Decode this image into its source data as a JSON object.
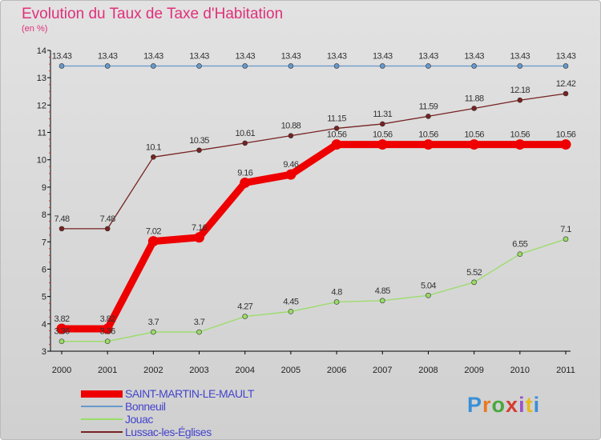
{
  "header": {
    "title": "Evolution du Taux de Taxe d'Habitation",
    "unit": "(en %)"
  },
  "logo": {
    "text": "Proxiti"
  },
  "colors": {
    "SAINT-MARTIN-LE-MAULT": "#ee0000",
    "Bonneuil": "#6699cc",
    "Jouac": "#99dd66",
    "Lussac-les-Églises": "#772222",
    "title": "#e0307a",
    "legend_text": "#4444cc"
  },
  "chart_data": {
    "type": "line",
    "x": [
      "2000",
      "2001",
      "2002",
      "2003",
      "2004",
      "2005",
      "2006",
      "2007",
      "2008",
      "2009",
      "2010",
      "2011"
    ],
    "y_ticks": [
      "3",
      "4",
      "5",
      "6",
      "7",
      "8",
      "9",
      "10",
      "11",
      "12",
      "13",
      "14"
    ],
    "ylim": [
      3,
      14
    ],
    "grid": false,
    "legend_position": "bottom-left",
    "series": [
      {
        "name": "SAINT-MARTIN-LE-MAULT",
        "values": [
          3.82,
          3.82,
          7.02,
          7.16,
          9.16,
          9.46,
          10.56,
          10.56,
          10.56,
          10.56,
          10.56,
          10.56
        ],
        "labels": [
          "3.82",
          "3.82",
          "7.02",
          "7.16",
          "9.16",
          "9.46",
          "10.56",
          "10.56",
          "10.56",
          "10.56",
          "10.56",
          "10.56"
        ]
      },
      {
        "name": "Bonneuil",
        "values": [
          13.43,
          13.43,
          13.43,
          13.43,
          13.43,
          13.43,
          13.43,
          13.43,
          13.43,
          13.43,
          13.43,
          13.43
        ],
        "labels": [
          "13.43",
          "13.43",
          "13.43",
          "13.43",
          "13.43",
          "13.43",
          "13.43",
          "13.43",
          "13.43",
          "13.43",
          "13.43",
          "13.43"
        ]
      },
      {
        "name": "Jouac",
        "values": [
          3.36,
          3.36,
          3.7,
          3.7,
          4.27,
          4.45,
          4.8,
          4.85,
          5.04,
          5.52,
          6.55,
          7.1
        ],
        "labels": [
          "3.36",
          "3.36",
          "3.7",
          "3.7",
          "4.27",
          "4.45",
          "4.8",
          "4.85",
          "5.04",
          "5.52",
          "6.55",
          "7.1"
        ]
      },
      {
        "name": "Lussac-les-Églises",
        "values": [
          7.48,
          7.48,
          10.1,
          10.35,
          10.61,
          10.88,
          11.15,
          11.31,
          11.59,
          11.88,
          12.18,
          12.42
        ],
        "labels": [
          "7.48",
          "7.48",
          "10.1",
          "10.35",
          "10.61",
          "10.88",
          "11.15",
          "11.31",
          "11.59",
          "11.88",
          "12.18",
          "12.42"
        ]
      }
    ]
  }
}
